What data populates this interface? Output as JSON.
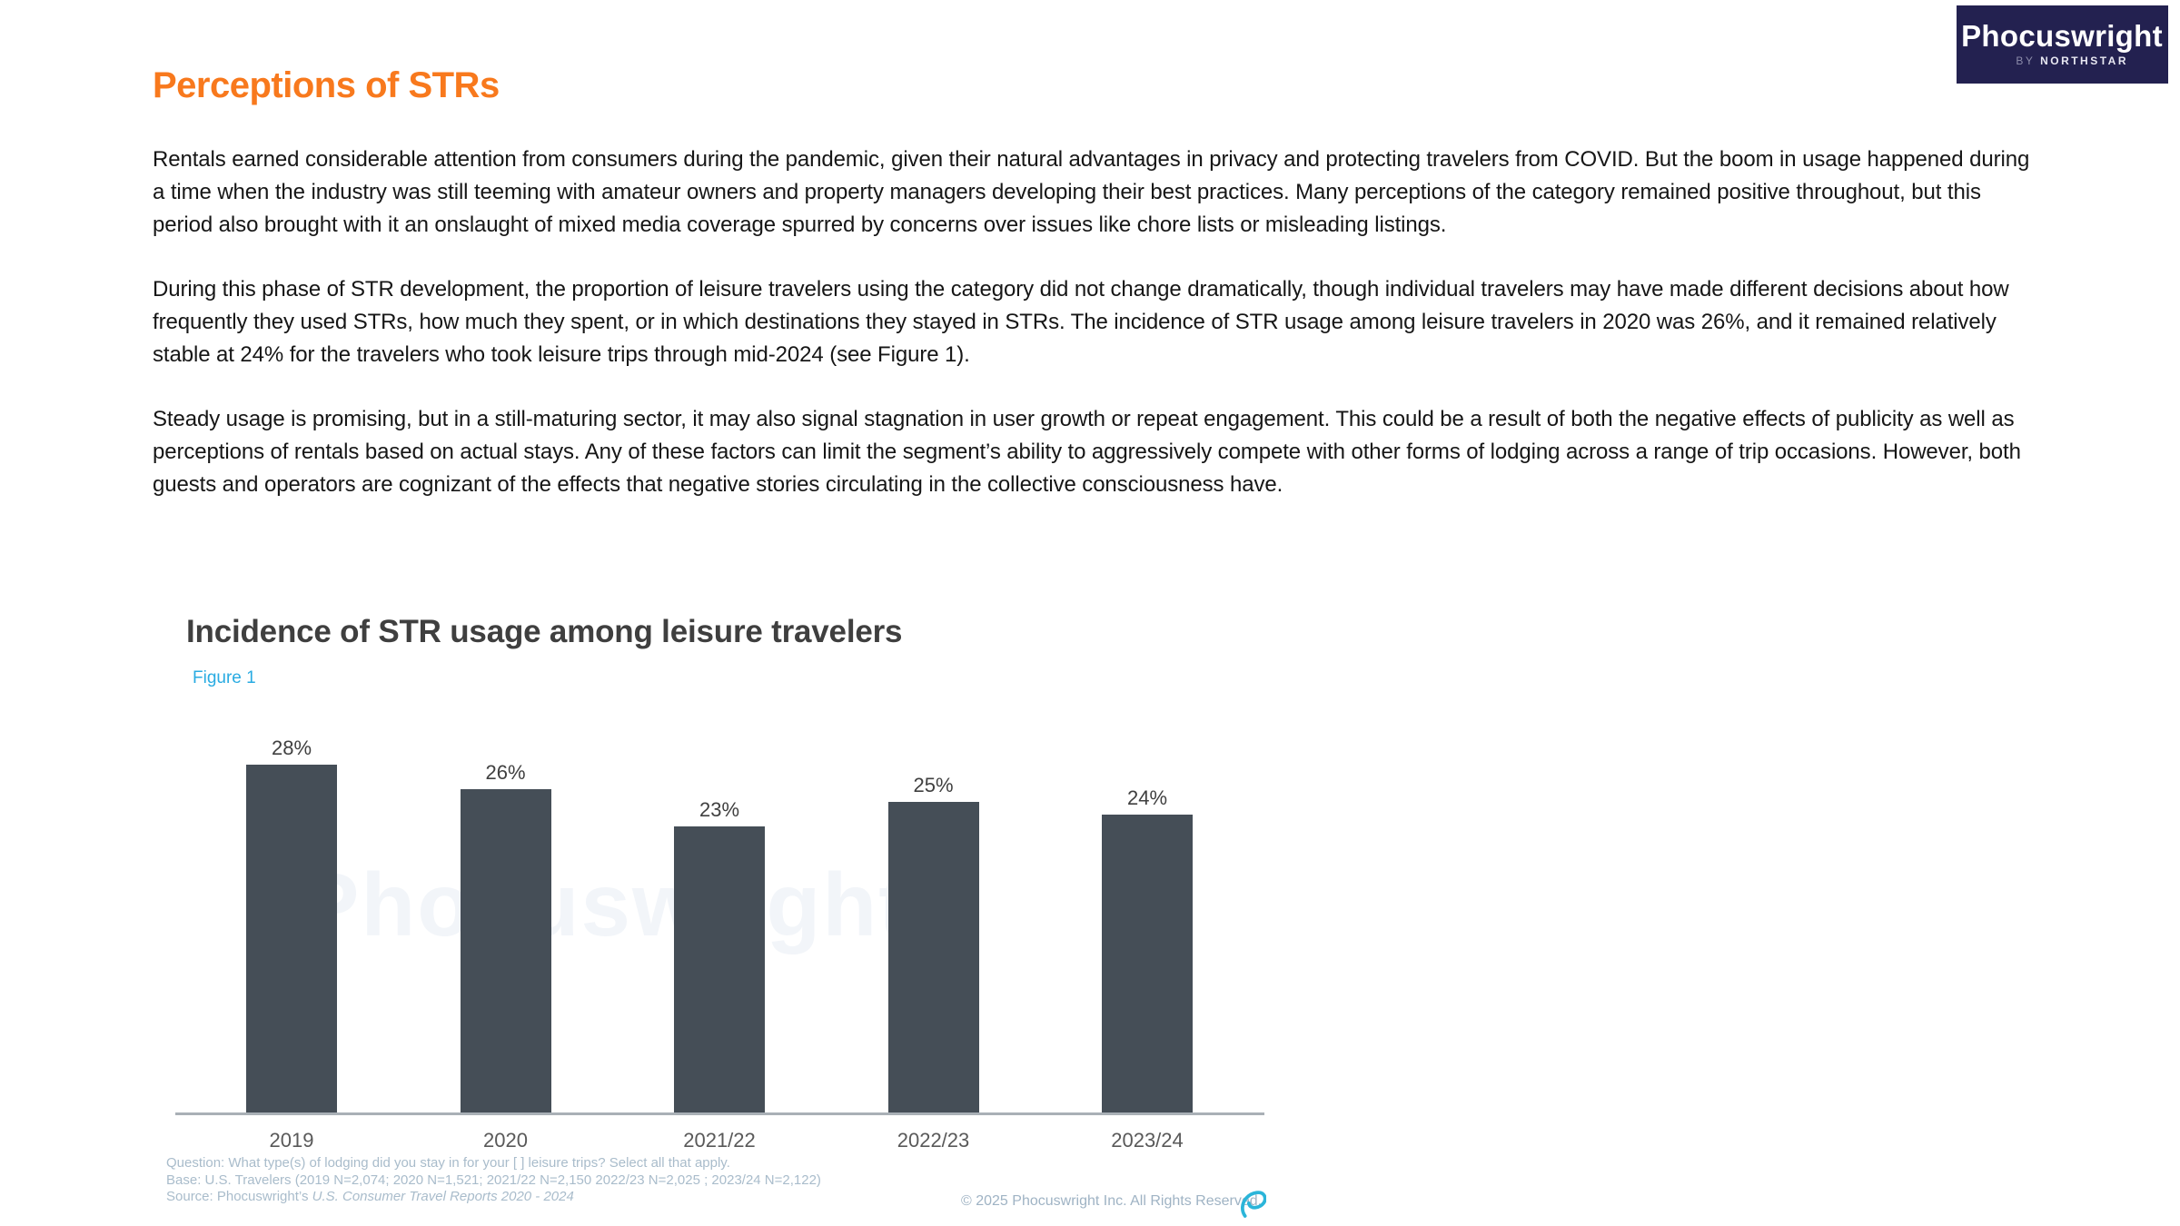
{
  "logo": {
    "brand": "Phocuswright",
    "byline_prefix": "BY",
    "byline_name": "NORTHSTAR",
    "bg_color": "#232150"
  },
  "page": {
    "heading": "Perceptions of STRs",
    "paragraph1": "Rentals earned considerable attention from consumers during the pandemic, given their natural advantages in privacy and protecting travelers from COVID. But the boom in usage happened during a time when the industry was still teeming with amateur owners and property managers developing their best practices. Many perceptions of the category remained positive throughout, but this period also brought with it an onslaught of mixed media coverage spurred by concerns over issues like chore lists or misleading listings.",
    "paragraph2": "During this phase of STR development, the proportion of leisure travelers using the category did not change dramatically, though individual travelers may have made different decisions about how frequently they used STRs, how much they spent, or in which destinations they stayed in STRs. The incidence of STR usage among leisure travelers in 2020 was 26%, and it remained relatively stable at 24% for the travelers who took leisure trips through mid-2024 (see Figure 1).",
    "paragraph3": "Steady usage is promising, but in a still-maturing sector, it may also signal stagnation in user growth or repeat engagement. This could be a result of both the negative effects of publicity as well as perceptions of rentals based on actual stays. Any of these factors can limit the segment’s ability to aggressively compete with other forms of lodging across a range of trip occasions. However, both guests and operators are cognizant of the effects that negative stories circulating in the collective consciousness have."
  },
  "chart": {
    "title": "Incidence of STR usage among leisure travelers",
    "figure_label": "Figure 1",
    "watermark": "Phocuswright",
    "bar_color": "#454E57",
    "accent_color": "#29ABE2",
    "axis_color": "#A9B0B6"
  },
  "chart_data": {
    "type": "bar",
    "categories": [
      "2019",
      "2020",
      "2021/22",
      "2022/23",
      "2023/24"
    ],
    "values": [
      28,
      26,
      23,
      25,
      24
    ],
    "value_labels": [
      "28%",
      "26%",
      "23%",
      "25%",
      "24%"
    ],
    "title": "Incidence of STR usage among leisure travelers",
    "xlabel": "",
    "ylabel": "",
    "ylim": [
      0,
      30
    ],
    "grid": false,
    "legend": false,
    "bar_color": "#454E57"
  },
  "footnotes": {
    "question": "Question: What type(s) of lodging did you stay in for your [ ] leisure trips? Select all that apply.",
    "base": "Base: U.S. Travelers (2019 N=2,074; 2020 N=1,521; 2021/22 N=2,150 2022/23 N=2,025 ; 2023/24 N=2,122)",
    "source_prefix": "Source: Phocuswright’s ",
    "source_title": "U.S. Consumer Travel Reports 2020 - 2024",
    "copyright": "© 2025 Phocuswright Inc. All Rights Reserved."
  }
}
